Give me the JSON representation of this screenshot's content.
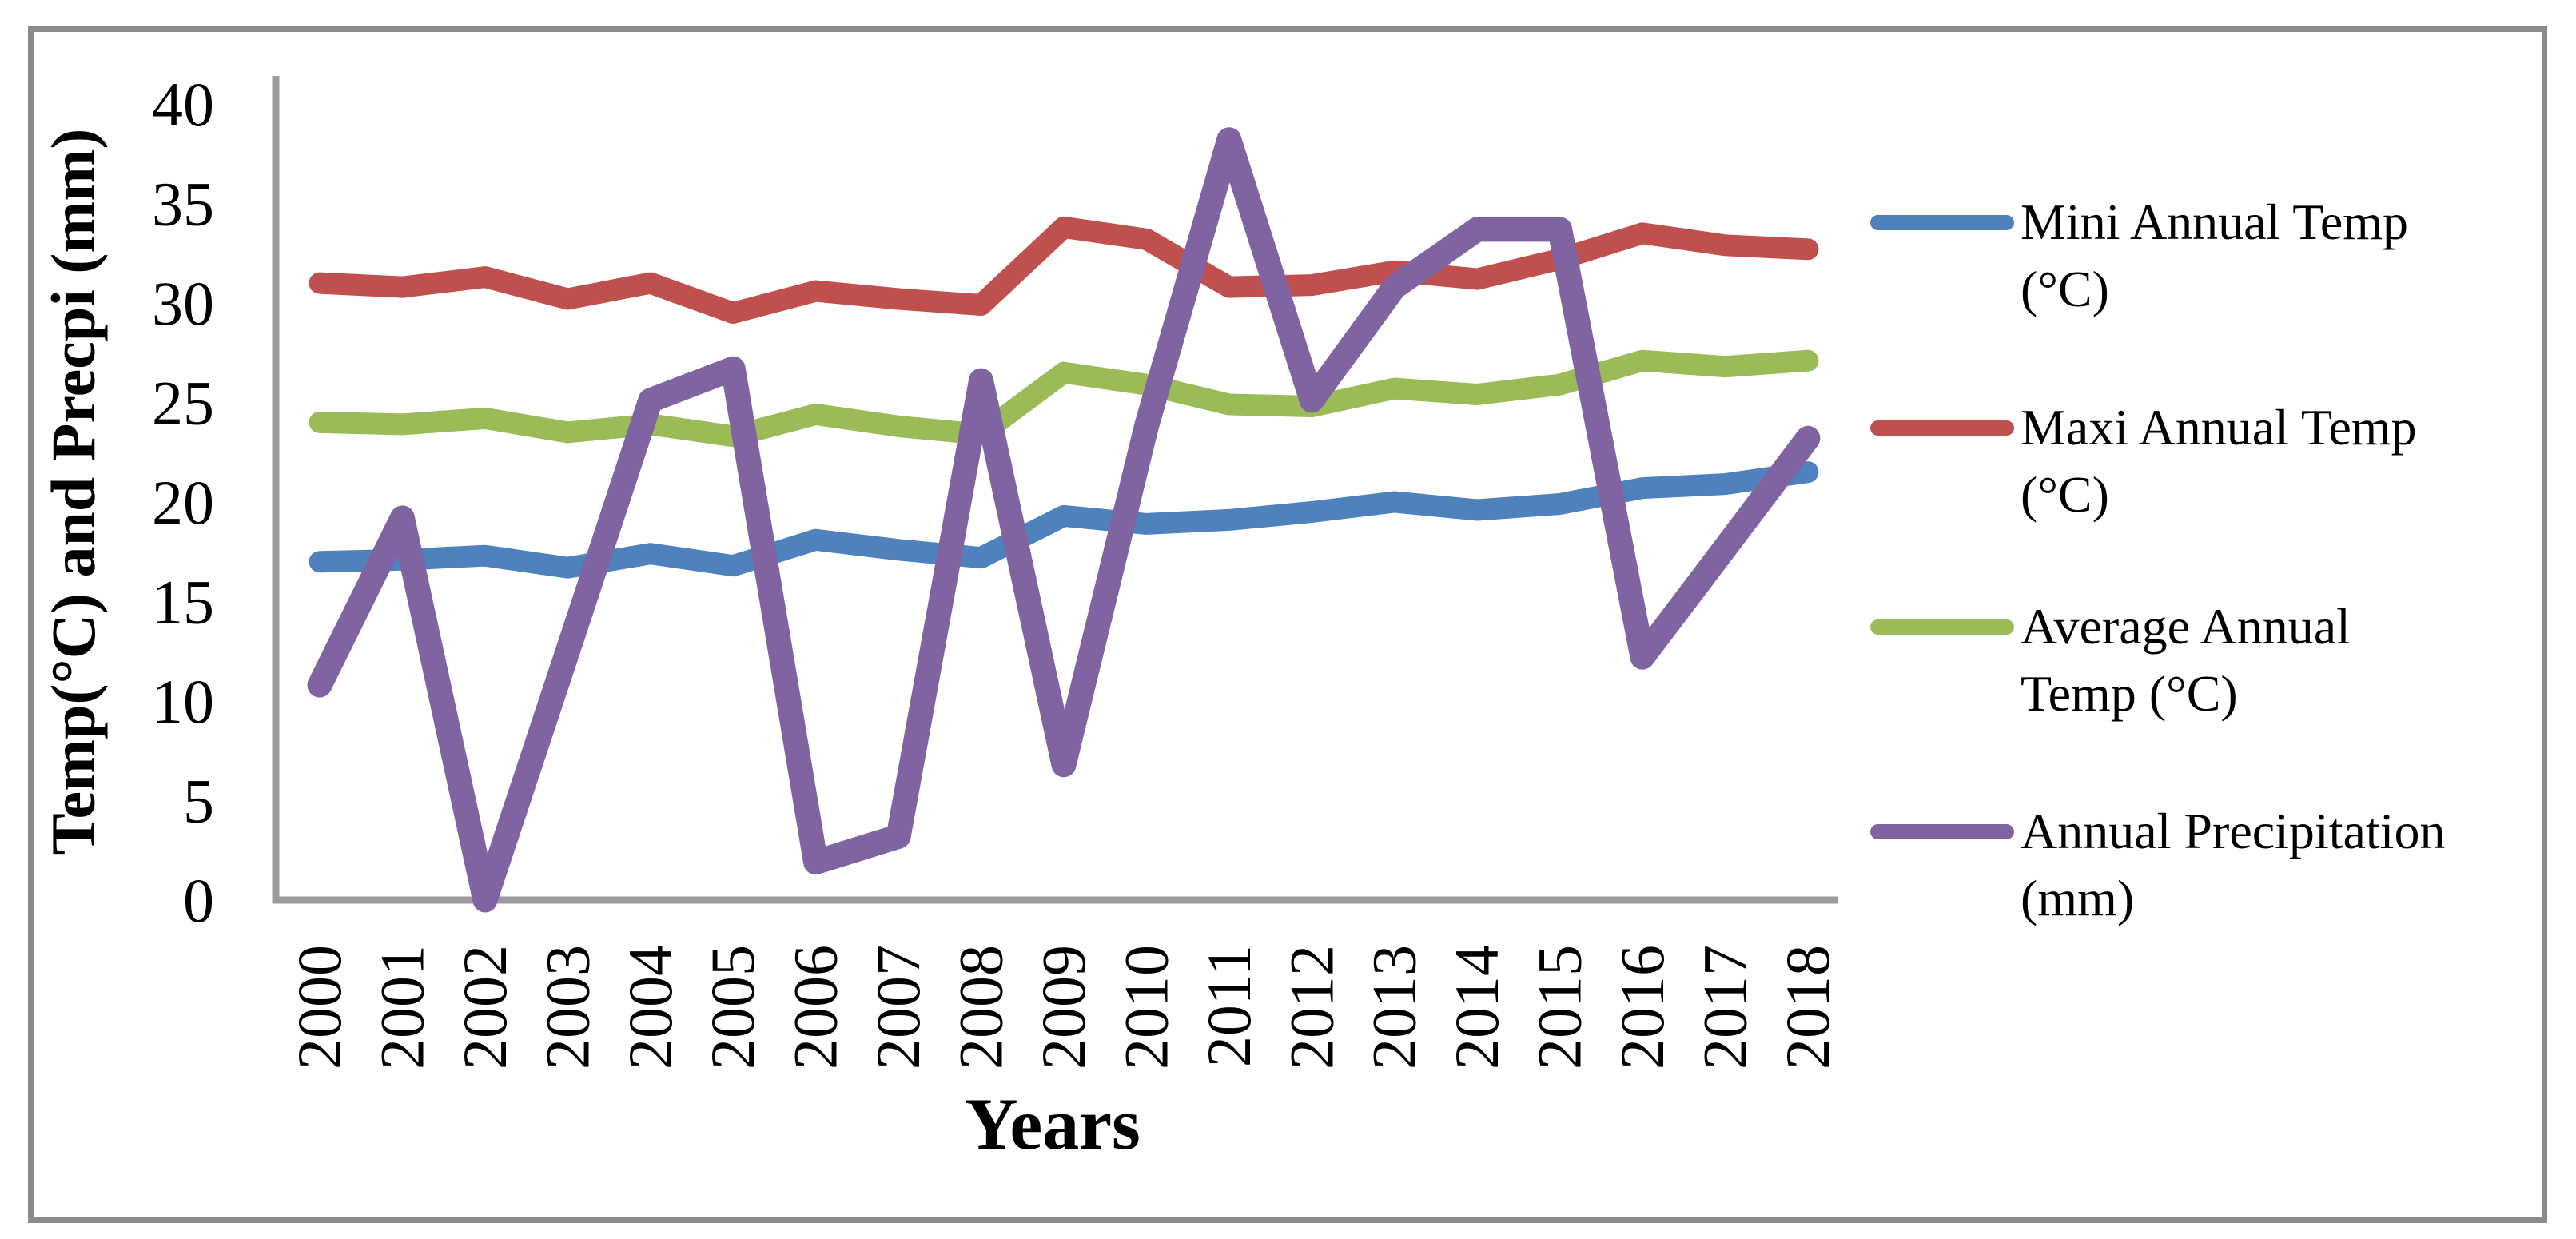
{
  "chart_data": {
    "type": "line",
    "title": "",
    "xlabel": "Years",
    "ylabel": "Temp(°C) and Precpi (mm)",
    "ylim": [
      0,
      40
    ],
    "ytick_step": 5,
    "yticks": [
      0,
      5,
      10,
      15,
      20,
      25,
      30,
      35,
      40
    ],
    "grid": false,
    "legend_position": "right",
    "axis_color": "#9b9b9b",
    "frame_border_color": "#8a8a8a",
    "text_color": "#000000",
    "categories": [
      "2000",
      "2001",
      "2002",
      "2003",
      "2004",
      "2005",
      "2006",
      "2007",
      "2008",
      "2009",
      "2010",
      "2011",
      "2012",
      "2013",
      "2014",
      "2015",
      "2016",
      "2017",
      "2018"
    ],
    "series": [
      {
        "name": "Mini Annual Temp (°C)",
        "legend_lines": [
          "Mini Annual Temp",
          "(°C)"
        ],
        "color": "#4f81bd",
        "values": [
          17.0,
          17.1,
          17.3,
          16.7,
          17.4,
          16.8,
          18.1,
          17.6,
          17.2,
          19.3,
          18.9,
          19.1,
          19.5,
          20.0,
          19.6,
          19.9,
          20.7,
          20.9,
          21.5
        ]
      },
      {
        "name": "Maxi Annual Temp (°C)",
        "legend_lines": [
          "Maxi Annual Temp",
          "(°C)"
        ],
        "color": "#c0504d",
        "values": [
          31.0,
          30.8,
          31.3,
          30.2,
          31.0,
          29.5,
          30.6,
          30.2,
          29.9,
          33.8,
          33.2,
          30.8,
          30.9,
          31.6,
          31.2,
          32.2,
          33.5,
          32.9,
          32.7
        ]
      },
      {
        "name": "Average Annual Temp (°C)",
        "legend_lines": [
          "Average Annual",
          "Temp (°C)"
        ],
        "color": "#9bbb59",
        "values": [
          24.0,
          23.9,
          24.2,
          23.5,
          23.9,
          23.3,
          24.4,
          23.8,
          23.4,
          26.5,
          25.9,
          24.9,
          24.8,
          25.7,
          25.4,
          25.9,
          27.1,
          26.8,
          27.1
        ]
      },
      {
        "name": "Annual Precipitation (mm)",
        "legend_lines": [
          "Annual Precipitation",
          "(mm)"
        ],
        "color": "#8064a2",
        "values": [
          10.8,
          19.2,
          0.0,
          12.5,
          25.1,
          26.7,
          1.9,
          3.2,
          26.1,
          6.8,
          23.8,
          38.2,
          25.1,
          30.8,
          33.7,
          33.7,
          12.2,
          17.7,
          23.2
        ]
      }
    ]
  }
}
